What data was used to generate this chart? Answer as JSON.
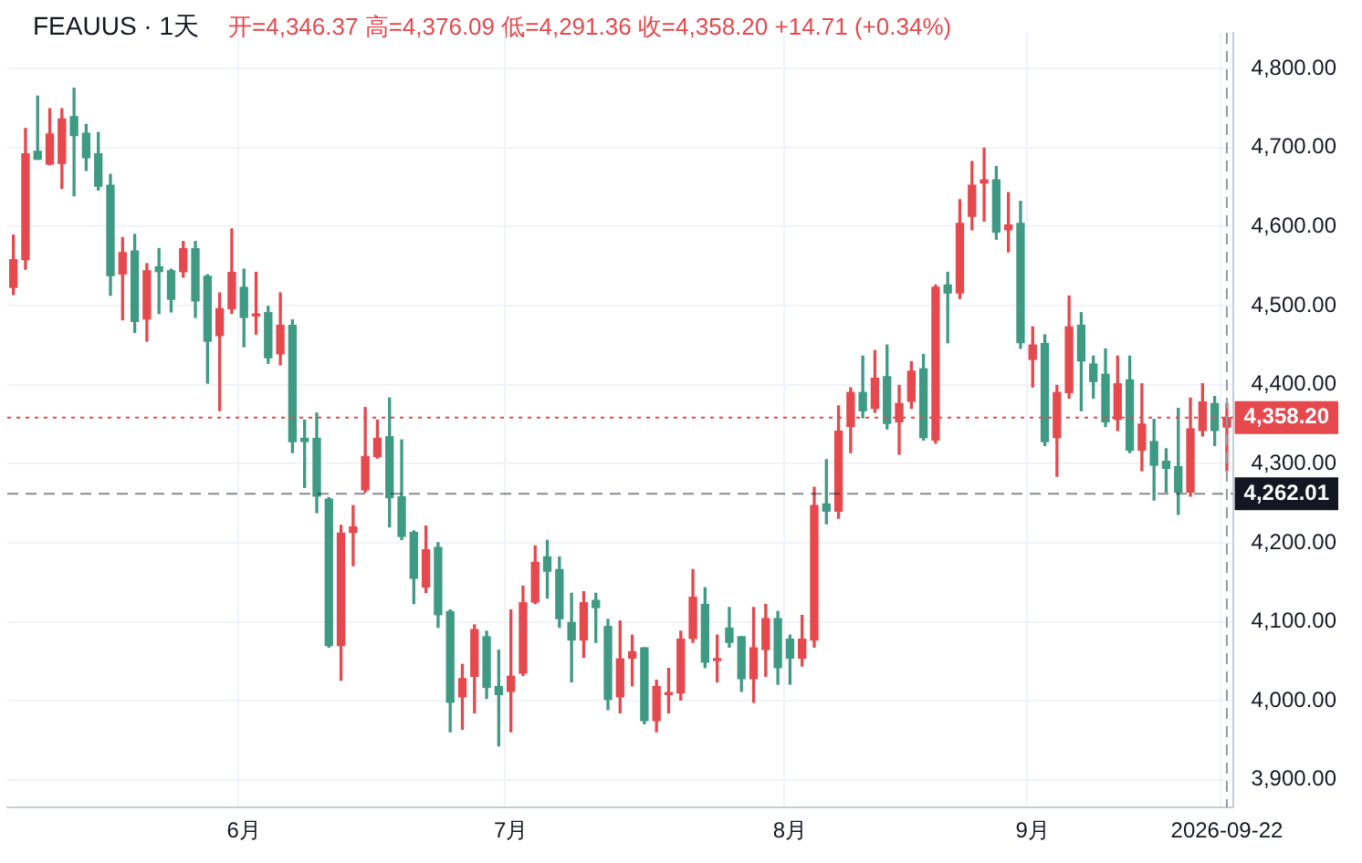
{
  "chart_data": {
    "type": "candlestick",
    "title": "FEAUUS · 1天",
    "subtitle": "开=4,346.37 高=4,376.09 低=4,291.36 收=4,358.20 +14.71 (+0.34%)",
    "categories": [
      null,
      null,
      null,
      null,
      null,
      null,
      null,
      null,
      null,
      null,
      null,
      null,
      null,
      null,
      null,
      null,
      null,
      null,
      null,
      "6月",
      null,
      null,
      null,
      null,
      null,
      null,
      null,
      null,
      null,
      null,
      null,
      null,
      null,
      null,
      null,
      null,
      null,
      null,
      null,
      null,
      null,
      "7月",
      null,
      null,
      null,
      null,
      null,
      null,
      null,
      null,
      null,
      null,
      null,
      null,
      null,
      null,
      null,
      null,
      null,
      null,
      null,
      null,
      null,
      null,
      "8月",
      null,
      null,
      null,
      null,
      null,
      null,
      null,
      null,
      null,
      null,
      null,
      null,
      null,
      null,
      null,
      null,
      null,
      null,
      null,
      "9月",
      null,
      null,
      null,
      null,
      null,
      null,
      null,
      null,
      null,
      null,
      null,
      null,
      null,
      null,
      null,
      "2026-09-22"
    ],
    "ohlc": [
      [
        4523,
        4589,
        4514,
        4558
      ],
      [
        4558,
        4724,
        4546,
        4692
      ],
      [
        4695,
        4765,
        4685,
        4685
      ],
      [
        4679,
        4749,
        4678,
        4717
      ],
      [
        4680,
        4749,
        4648,
        4736
      ],
      [
        4739,
        4775,
        4639,
        4715
      ],
      [
        4718,
        4729,
        4671,
        4687
      ],
      [
        4692,
        4719,
        4646,
        4651
      ],
      [
        4652,
        4666,
        4513,
        4538
      ],
      [
        4540,
        4586,
        4482,
        4567
      ],
      [
        4569,
        4590,
        4466,
        4480
      ],
      [
        4483,
        4553,
        4455,
        4544
      ],
      [
        4549,
        4572,
        4490,
        4543
      ],
      [
        4544,
        4546,
        4492,
        4508
      ],
      [
        4543,
        4581,
        4536,
        4572
      ],
      [
        4572,
        4581,
        4485,
        4506
      ],
      [
        4537,
        4539,
        4402,
        4455
      ],
      [
        4462,
        4516,
        4367,
        4496
      ],
      [
        4496,
        4597,
        4490,
        4542
      ],
      [
        4523,
        4546,
        4448,
        4485
      ],
      [
        4487,
        4542,
        4464,
        4489
      ],
      [
        4491,
        4499,
        4427,
        4434
      ],
      [
        4439,
        4516,
        4425,
        4475
      ],
      [
        4475,
        4482,
        4314,
        4328
      ],
      [
        4332,
        4355,
        4270,
        4328
      ],
      [
        4332,
        4364,
        4238,
        4259
      ],
      [
        4255,
        4257,
        4068,
        4070
      ],
      [
        4070,
        4222,
        4026,
        4212
      ],
      [
        4213,
        4247,
        4171,
        4220
      ],
      [
        4267,
        4371,
        4264,
        4309
      ],
      [
        4309,
        4355,
        4307,
        4332
      ],
      [
        4334,
        4383,
        4220,
        4257
      ],
      [
        4258,
        4330,
        4204,
        4208
      ],
      [
        4213,
        4215,
        4123,
        4155
      ],
      [
        4144,
        4221,
        4137,
        4191
      ],
      [
        4194,
        4200,
        4093,
        4109
      ],
      [
        4113,
        4115,
        3961,
        3998
      ],
      [
        4005,
        4046,
        3964,
        4028
      ],
      [
        4031,
        4096,
        3985,
        4090
      ],
      [
        4081,
        4088,
        4003,
        4017
      ],
      [
        4018,
        4064,
        3943,
        4008
      ],
      [
        4012,
        4115,
        3961,
        4031
      ],
      [
        4035,
        4145,
        4032,
        4124
      ],
      [
        4125,
        4196,
        4123,
        4175
      ],
      [
        4182,
        4203,
        4130,
        4164
      ],
      [
        4166,
        4182,
        4093,
        4104
      ],
      [
        4099,
        4136,
        4024,
        4077
      ],
      [
        4077,
        4138,
        4055,
        4124
      ],
      [
        4127,
        4136,
        4074,
        4118
      ],
      [
        4094,
        4103,
        3989,
        4002
      ],
      [
        4005,
        4101,
        3985,
        4053
      ],
      [
        4054,
        4083,
        4019,
        4062
      ],
      [
        4067,
        4067,
        3971,
        3975
      ],
      [
        3975,
        4026,
        3961,
        4018
      ],
      [
        4008,
        4041,
        3985,
        4010
      ],
      [
        4010,
        4088,
        4001,
        4078
      ],
      [
        4079,
        4166,
        4074,
        4131
      ],
      [
        4122,
        4143,
        4042,
        4049
      ],
      [
        4051,
        4083,
        4024,
        4053
      ],
      [
        4092,
        4118,
        4068,
        4074
      ],
      [
        4081,
        4081,
        4012,
        4028
      ],
      [
        4028,
        4118,
        3998,
        4067
      ],
      [
        4065,
        4122,
        4031,
        4104
      ],
      [
        4104,
        4113,
        4021,
        4042
      ],
      [
        4078,
        4083,
        4021,
        4054
      ],
      [
        4054,
        4108,
        4044,
        4078
      ],
      [
        4077,
        4270,
        4068,
        4247
      ],
      [
        4249,
        4305,
        4224,
        4240
      ],
      [
        4240,
        4373,
        4231,
        4341
      ],
      [
        4347,
        4396,
        4314,
        4390
      ],
      [
        4390,
        4436,
        4358,
        4367
      ],
      [
        4370,
        4443,
        4365,
        4408
      ],
      [
        4410,
        4450,
        4344,
        4351
      ],
      [
        4353,
        4399,
        4312,
        4376
      ],
      [
        4379,
        4429,
        4370,
        4417
      ],
      [
        4420,
        4438,
        4330,
        4333
      ],
      [
        4330,
        4526,
        4326,
        4523
      ],
      [
        4526,
        4542,
        4453,
        4516
      ],
      [
        4516,
        4634,
        4509,
        4604
      ],
      [
        4613,
        4682,
        4596,
        4652
      ],
      [
        4655,
        4699,
        4607,
        4659
      ],
      [
        4659,
        4676,
        4584,
        4593
      ],
      [
        4596,
        4643,
        4568,
        4602
      ],
      [
        4604,
        4632,
        4446,
        4453
      ],
      [
        4432,
        4473,
        4397,
        4450
      ],
      [
        4452,
        4463,
        4323,
        4328
      ],
      [
        4333,
        4399,
        4284,
        4390
      ],
      [
        4390,
        4512,
        4383,
        4473
      ],
      [
        4475,
        4491,
        4367,
        4430
      ],
      [
        4426,
        4436,
        4383,
        4404
      ],
      [
        4413,
        4445,
        4347,
        4353
      ],
      [
        4356,
        4436,
        4342,
        4401
      ],
      [
        4406,
        4436,
        4314,
        4317
      ],
      [
        4317,
        4401,
        4291,
        4350
      ],
      [
        4328,
        4356,
        4254,
        4298
      ],
      [
        4303,
        4319,
        4264,
        4294
      ],
      [
        4296,
        4370,
        4236,
        4264
      ],
      [
        4264,
        4383,
        4259,
        4344
      ],
      [
        4342,
        4401,
        4335,
        4378
      ],
      [
        4376,
        4385,
        4323,
        4342
      ],
      [
        4346.37,
        4376.09,
        4291.36,
        4358.2
      ]
    ],
    "colors": [
      "#e5484d",
      "#e5484d",
      "#3f9a84",
      "#e5484d",
      "#e5484d",
      "#3f9a84",
      "#3f9a84",
      "#3f9a84",
      "#3f9a84",
      "#e5484d",
      "#3f9a84",
      "#e5484d",
      "#3f9a84",
      "#3f9a84",
      "#e5484d",
      "#3f9a84",
      "#3f9a84",
      "#e5484d",
      "#e5484d",
      "#3f9a84",
      "#e5484d",
      "#3f9a84",
      "#e5484d",
      "#3f9a84",
      "#3f9a84",
      "#3f9a84",
      "#3f9a84",
      "#e5484d",
      "#e5484d",
      "#e5484d",
      "#e5484d",
      "#3f9a84",
      "#3f9a84",
      "#3f9a84",
      "#e5484d",
      "#3f9a84",
      "#3f9a84",
      "#e5484d",
      "#e5484d",
      "#3f9a84",
      "#3f9a84",
      "#e5484d",
      "#e5484d",
      "#e5484d",
      "#3f9a84",
      "#3f9a84",
      "#3f9a84",
      "#e5484d",
      "#3f9a84",
      "#3f9a84",
      "#e5484d",
      "#e5484d",
      "#3f9a84",
      "#e5484d",
      "#e5484d",
      "#e5484d",
      "#e5484d",
      "#3f9a84",
      "#e5484d",
      "#3f9a84",
      "#3f9a84",
      "#e5484d",
      "#e5484d",
      "#3f9a84",
      "#3f9a84",
      "#e5484d",
      "#e5484d",
      "#3f9a84",
      "#e5484d",
      "#e5484d",
      "#3f9a84",
      "#e5484d",
      "#3f9a84",
      "#e5484d",
      "#e5484d",
      "#3f9a84",
      "#e5484d",
      "#3f9a84",
      "#e5484d",
      "#e5484d",
      "#e5484d",
      "#3f9a84",
      "#e5484d",
      "#3f9a84",
      "#e5484d",
      "#3f9a84",
      "#e5484d",
      "#e5484d",
      "#3f9a84",
      "#3f9a84",
      "#3f9a84",
      "#e5484d",
      "#3f9a84",
      "#e5484d",
      "#3f9a84",
      "#3f9a84",
      "#3f9a84",
      "#e5484d",
      "#e5484d",
      "#3f9a84",
      "#e5484d"
    ],
    "ylim": [
      3865,
      4845
    ],
    "yticks": [
      {
        "value": 3900,
        "label": "3,900.00"
      },
      {
        "value": 4000,
        "label": "4,000.00"
      },
      {
        "value": 4100,
        "label": "4,100.00"
      },
      {
        "value": 4200,
        "label": "4,200.00"
      },
      {
        "value": 4300,
        "label": "4,300.00"
      },
      {
        "value": 4400,
        "label": "4,400.00"
      },
      {
        "value": 4500,
        "label": "4,500.00"
      },
      {
        "value": 4600,
        "label": "4,600.00"
      },
      {
        "value": 4700,
        "label": "4,700.00"
      },
      {
        "value": 4800,
        "label": "4,800.00"
      }
    ],
    "ref_lines": [
      {
        "axis": "y",
        "value": 4358.2,
        "label": "4,358.20",
        "color": "#e5484d",
        "line_style": "dotted"
      },
      {
        "axis": "y",
        "value": 4262.01,
        "label": "4,262.01",
        "color": "#131722",
        "line_style": "dashed"
      },
      {
        "axis": "x",
        "value": "2026-09-22",
        "color": "#9598a1",
        "line_style": "dashed"
      }
    ],
    "grid": true,
    "legend": false
  }
}
